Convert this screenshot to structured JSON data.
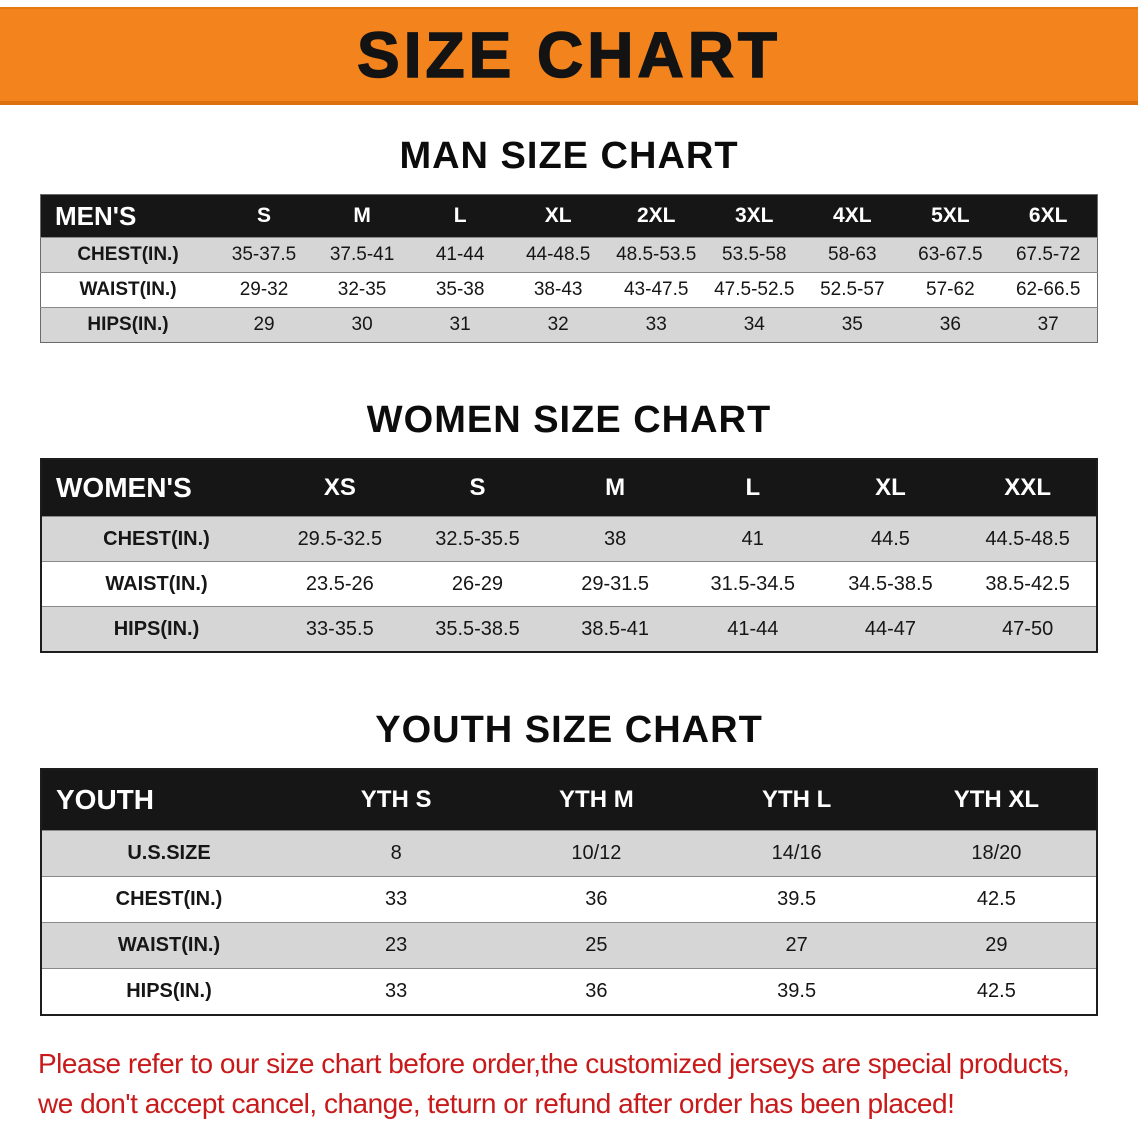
{
  "banner": {
    "title": "SIZE CHART",
    "bg_color": "#F3831D",
    "text_color": "#131313"
  },
  "colors": {
    "header_bar": "#161616",
    "stripe_row": "#D6D6D6",
    "notice_red": "#C81A1A"
  },
  "sections": [
    {
      "heading": "MAN SIZE CHART",
      "table": {
        "header": [
          "MEN'S",
          "S",
          "M",
          "L",
          "XL",
          "2XL",
          "3XL",
          "4XL",
          "5XL",
          "6XL"
        ],
        "rows": [
          [
            "CHEST(IN.)",
            "35-37.5",
            "37.5-41",
            "41-44",
            "44-48.5",
            "48.5-53.5",
            "53.5-58",
            "58-63",
            "63-67.5",
            "67.5-72"
          ],
          [
            "WAIST(IN.)",
            "29-32",
            "32-35",
            "35-38",
            "38-43",
            "43-47.5",
            "47.5-52.5",
            "52.5-57",
            "57-62",
            "62-66.5"
          ],
          [
            "HIPS(IN.)",
            "29",
            "30",
            "31",
            "32",
            "33",
            "34",
            "35",
            "36",
            "37"
          ]
        ]
      }
    },
    {
      "heading": "WOMEN SIZE CHART",
      "table": {
        "header": [
          "WOMEN'S",
          "XS",
          "S",
          "M",
          "L",
          "XL",
          "XXL"
        ],
        "rows": [
          [
            "CHEST(IN.)",
            "29.5-32.5",
            "32.5-35.5",
            "38",
            "41",
            "44.5",
            "44.5-48.5"
          ],
          [
            "WAIST(IN.)",
            "23.5-26",
            "26-29",
            "29-31.5",
            "31.5-34.5",
            "34.5-38.5",
            "38.5-42.5"
          ],
          [
            "HIPS(IN.)",
            "33-35.5",
            "35.5-38.5",
            "38.5-41",
            "41-44",
            "44-47",
            "47-50"
          ]
        ]
      }
    },
    {
      "heading": "YOUTH SIZE CHART",
      "table": {
        "header": [
          "YOUTH",
          "YTH S",
          "YTH M",
          "YTH L",
          "YTH XL"
        ],
        "rows": [
          [
            "U.S.SIZE",
            "8",
            "10/12",
            "14/16",
            "18/20"
          ],
          [
            "CHEST(IN.)",
            "33",
            "36",
            "39.5",
            "42.5"
          ],
          [
            "WAIST(IN.)",
            "23",
            "25",
            "27",
            "29"
          ],
          [
            "HIPS(IN.)",
            "33",
            "36",
            "39.5",
            "42.5"
          ]
        ]
      }
    }
  ],
  "footer": {
    "lines": [
      "Please refer to our size chart before order,the customized jerseys are special products,",
      "we don't accept cancel, change, teturn or refund after order has been placed!"
    ]
  }
}
